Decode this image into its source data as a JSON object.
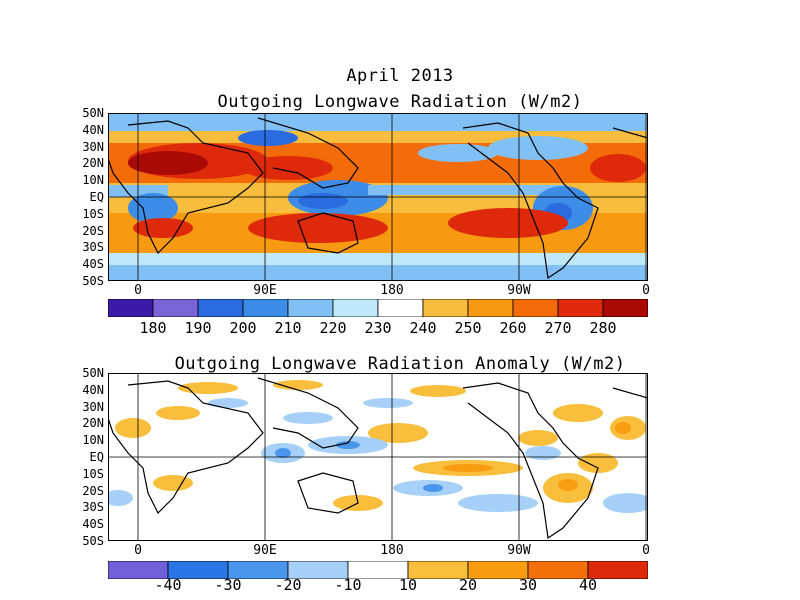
{
  "header": {
    "period": "April 2013"
  },
  "colors": {
    "olr_scale": [
      "#3a1aa6",
      "#7a64d8",
      "#2a6ce0",
      "#3c8ce8",
      "#80c0f4",
      "#bfe8fa",
      "#ffffff",
      "#f8bd3c",
      "#f79a12",
      "#f46c0a",
      "#de2a0a",
      "#aa0a06"
    ],
    "anom_scale": [
      "#7060d8",
      "#2a76e6",
      "#4a96ec",
      "#a6d0f8",
      "#ffffff",
      "#f8be3c",
      "#f89c12",
      "#f3700a",
      "#dd2a0a"
    ],
    "coastline": "#000000"
  },
  "maps": [
    {
      "id": "olr",
      "title": "Outgoing Longwave Radiation (W/m2)",
      "y_labels": [
        "50N",
        "40N",
        "30N",
        "20N",
        "10N",
        "EQ",
        "10S",
        "20S",
        "30S",
        "40S",
        "50S"
      ],
      "x_labels": [
        "0",
        "90E",
        "180",
        "90W",
        "0"
      ],
      "colorbar_labels": [
        "180",
        "190",
        "200",
        "210",
        "220",
        "230",
        "240",
        "250",
        "260",
        "270",
        "280"
      ]
    },
    {
      "id": "anomaly",
      "title": "Outgoing Longwave Radiation Anomaly (W/m2)",
      "y_labels": [
        "50N",
        "40N",
        "30N",
        "20N",
        "10N",
        "EQ",
        "10S",
        "20S",
        "30S",
        "40S",
        "50S"
      ],
      "x_labels": [
        "0",
        "90E",
        "180",
        "90W",
        "0"
      ],
      "colorbar_labels": [
        "-40",
        "-30",
        "-20",
        "-10",
        "10",
        "20",
        "30",
        "40"
      ]
    }
  ]
}
